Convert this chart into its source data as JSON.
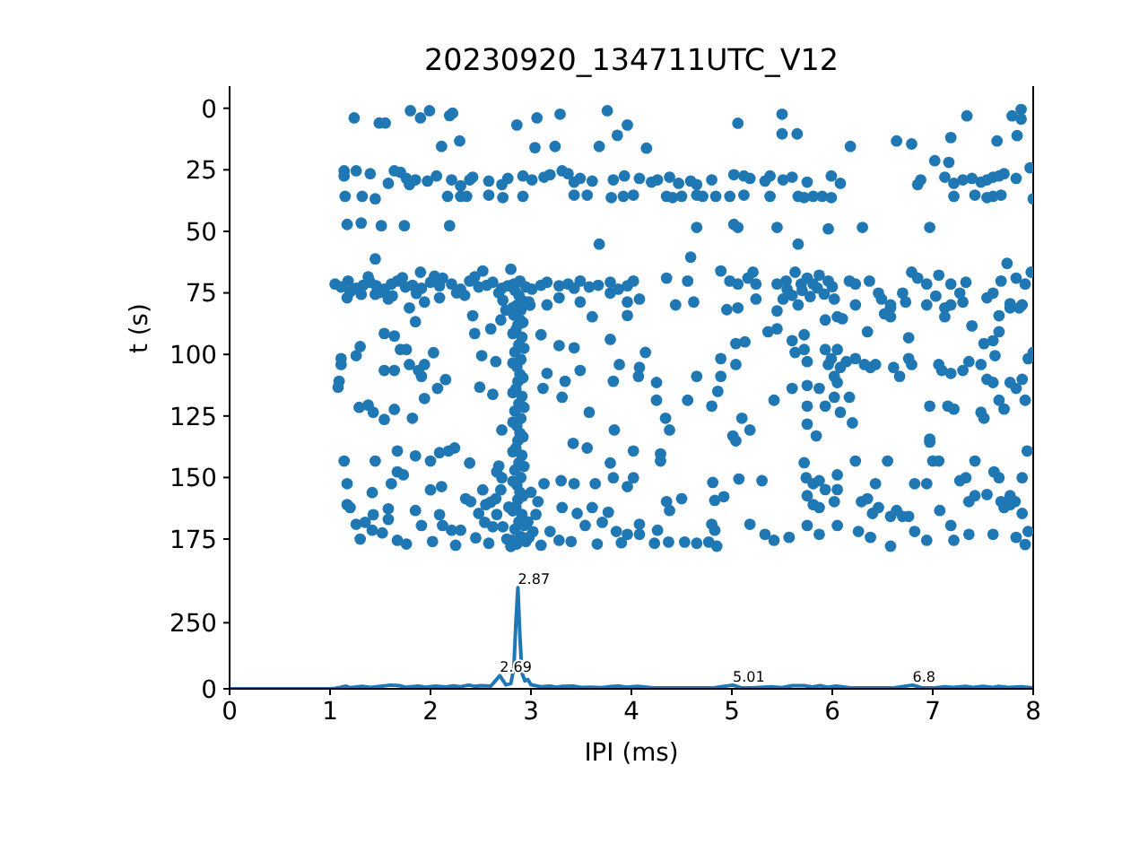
{
  "chart_data": [
    {
      "type": "scatter",
      "title": "20230920_134711UTC_V12",
      "ylabel": "t (s)",
      "x": [
        1.24,
        1.49,
        1.55,
        1.8,
        1.9,
        1.99,
        2.19,
        2.22,
        2.11,
        2.29,
        2.86,
        3.06,
        3.29,
        3.04,
        3.24,
        3.76,
        3.68,
        3.86,
        3.96,
        1.14,
        1.14,
        1.26,
        1.4,
        1.58,
        1.64,
        1.7,
        1.76,
        1.79,
        1.85,
        1.97,
        2.06,
        2.21,
        2.3,
        2.39,
        2.42,
        2.58,
        2.71,
        2.77,
        2.92,
        3.01,
        3.13,
        3.19,
        3.31,
        3.37,
        3.43,
        3.49,
        3.61,
        3.82,
        3.93,
        1.15,
        1.32,
        1.45,
        2.17,
        2.3,
        2.36,
        2.58,
        2.72,
        2.92,
        3.43,
        3.56,
        3.8,
        3.92,
        1.17,
        1.31,
        1.51,
        1.74,
        2.19,
        3.68,
        1.45,
        1.05,
        1.11,
        1.18,
        1.26,
        1.33,
        1.4,
        1.46,
        1.54,
        1.61,
        1.67,
        1.75,
        1.82,
        1.91,
        2.0,
        2.09,
        2.21,
        2.3,
        2.39,
        2.48,
        2.56,
        2.62,
        2.71,
        2.77,
        2.83,
        2.89,
        2.95,
        3.01,
        3.1,
        3.16,
        3.28,
        3.37,
        3.43,
        3.49,
        3.58,
        3.67,
        3.79,
        3.87,
        3.96,
        1.2,
        1.38,
        1.5,
        1.72,
        1.86,
        2.04,
        2.26,
        2.44,
        2.34,
        1.62,
        1.9,
        2.52,
        2.8,
        2.12,
        1.17,
        1.31,
        1.45,
        1.58,
        1.79,
        1.94,
        2.09,
        2.42,
        2.98,
        3.16,
        3.28,
        3.49,
        3.61,
        3.79,
        3.96,
        2.84,
        2.88,
        2.91,
        2.86,
        2.9,
        2.83,
        2.89,
        2.87,
        2.85,
        2.91,
        2.88,
        2.84,
        2.9,
        2.86,
        2.89,
        2.87,
        2.85,
        2.91,
        2.88,
        2.84,
        2.9,
        2.86,
        2.89,
        2.87,
        2.85,
        2.91,
        2.88,
        2.84,
        2.9,
        2.86,
        2.89,
        2.87,
        2.85,
        2.91,
        2.88,
        2.84,
        2.9,
        2.86,
        2.82,
        2.92,
        2.82,
        2.93,
        2.82,
        2.92,
        2.82,
        2.93,
        2.82,
        2.92,
        2.82,
        2.93,
        2.82,
        2.92,
        2.82,
        2.93,
        2.82,
        2.68,
        2.72,
        2.75,
        2.7,
        2.99,
        2.6,
        2.66,
        2.72,
        2.76,
        2.97,
        3.02,
        2.7,
        2.78,
        2.95,
        2.8,
        1.11,
        1.11,
        1.08,
        1.09,
        1.3,
        1.26,
        1.29,
        1.38,
        1.43,
        1.54,
        1.64,
        1.54,
        1.64,
        1.7,
        1.76,
        1.79,
        1.85,
        1.91,
        1.94,
        1.88,
        1.82,
        1.64,
        1.54,
        1.94,
        2.15,
        2.07,
        2.03,
        2.44,
        2.51,
        2.49,
        2.6,
        2.65,
        2.62,
        2.71,
        3.1,
        3.12,
        3.16,
        3.28,
        3.34,
        3.31,
        3.43,
        3.49,
        3.58,
        3.79,
        3.82,
        3.83,
        3.88,
        1.14,
        1.45,
        1.67,
        1.85,
        2.0,
        2.09,
        2.18,
        2.24,
        2.39,
        2.68,
        2.71,
        3.42,
        3.56,
        3.79,
        1.17,
        1.17,
        1.2,
        1.26,
        1.35,
        1.42,
        1.43,
        1.42,
        1.58,
        1.61,
        1.58,
        1.67,
        1.73,
        1.67,
        1.85,
        1.91,
        2.0,
        2.11,
        2.09,
        2.12,
        2.21,
        2.3,
        2.35,
        2.4,
        2.48,
        2.54,
        2.58,
        2.65,
        2.66,
        2.98,
        3.07,
        3.13,
        3.19,
        3.28,
        3.3,
        3.31,
        3.43,
        3.46,
        3.54,
        3.61,
        3.64,
        3.71,
        3.77,
        3.82,
        3.85,
        3.96,
        3.96,
        1.3,
        1.52,
        1.76,
        2.02,
        2.25,
        2.45,
        3.1,
        3.4,
        3.66,
        3.9,
        2.52,
        2.62,
        3.05,
        3.0,
        2.55,
        4.15,
        5.06,
        5.5,
        5.5,
        5.65,
        6.18,
        6.64,
        6.79,
        7.18,
        7.02,
        7.16,
        7.34,
        7.64,
        7.79,
        7.88,
        7.88,
        7.84,
        7.97,
        4.08,
        4.2,
        4.26,
        4.38,
        4.47,
        4.59,
        4.65,
        4.8,
        5.02,
        5.12,
        5.18,
        5.33,
        5.38,
        5.51,
        5.6,
        5.75,
        5.99,
        6.08,
        6.85,
        6.88,
        7.12,
        7.21,
        7.3,
        7.39,
        7.48,
        7.54,
        7.6,
        7.66,
        7.71,
        7.83,
        4.02,
        4.35,
        4.41,
        4.5,
        4.65,
        4.71,
        4.84,
        4.98,
        5.12,
        5.38,
        5.66,
        5.72,
        5.81,
        5.9,
        5.99,
        7.21,
        7.42,
        7.54,
        7.6,
        7.68,
        8.0,
        4.65,
        5.02,
        5.06,
        5.45,
        5.96,
        6.3,
        6.97,
        5.66,
        4.02,
        4.35,
        4.56,
        4.59,
        4.89,
        4.98,
        5.16,
        5.21,
        5.24,
        5.06,
        5.45,
        5.54,
        5.63,
        5.69,
        5.75,
        5.81,
        5.87,
        5.96,
        6.17,
        6.23,
        6.37,
        6.46,
        6.7,
        6.79,
        6.85,
        6.94,
        7.06,
        7.18,
        7.27,
        7.33,
        7.6,
        7.68,
        7.74,
        7.83,
        7.92,
        7.98,
        4.08,
        4.44,
        4.62,
        4.95,
        5.06,
        5.24,
        5.45,
        5.51,
        5.66,
        6.02,
        6.05,
        6.23,
        6.49,
        6.58,
        6.73,
        6.94,
        7.03,
        7.12,
        7.3,
        7.54,
        7.77,
        7.89,
        7.66,
        5.55,
        5.7,
        5.85,
        5.92,
        5.6,
        6.0,
        5.78,
        5.93,
        6.1,
        3.96,
        4.14,
        4.08,
        4.07,
        4.25,
        4.25,
        4.34,
        4.38,
        4.02,
        4.29,
        4.29,
        4.02,
        4.08,
        4.26,
        4.23,
        4.35,
        4.38,
        4.5,
        4.37,
        4.53,
        4.65,
        4.56,
        4.65,
        4.8,
        4.86,
        4.89,
        5.04,
        5.13,
        5.04,
        4.89,
        5.1,
        5.18,
        5.01,
        5.04,
        4.81,
        4.83,
        4.92,
        5.07,
        4.8,
        4.83,
        4.85,
        5.18,
        5.3,
        5.36,
        5.45,
        5.6,
        5.72,
        5.72,
        5.63,
        5.75,
        5.93,
        6.05,
        5.99,
        6.02,
        5.96,
        6.08,
        6.14,
        6.23,
        6.32,
        6.38,
        6.43,
        5.42,
        5.6,
        5.75,
        5.87,
        6.05,
        6.02,
        6.17,
        5.75,
        5.93,
        6.08,
        6.2,
        5.75,
        5.84,
        5.72,
        5.74,
        5.81,
        5.75,
        5.87,
        5.93,
        6.05,
        6.05,
        6.02,
        5.81,
        5.87,
        6.23,
        6.29,
        6.35,
        6.4,
        6.43,
        6.55,
        6.46,
        6.58,
        6.64,
        6.7,
        6.76,
        6.82,
        6.94,
        6.97,
        7.0,
        7.06,
        7.07,
        7.18,
        7.27,
        7.33,
        7.42,
        7.36,
        7.42,
        7.54,
        7.61,
        7.66,
        7.68,
        7.71,
        7.77,
        7.82,
        7.89,
        7.94,
        7.95,
        7.83,
        7.77,
        7.89,
        7.06,
        7.09,
        7.18,
        7.3,
        7.36,
        7.48,
        7.54,
        7.6,
        7.77,
        7.83,
        7.89,
        7.92,
        7.95,
        8.0,
        7.66,
        7.71,
        7.48,
        7.51,
        7.15,
        7.21,
        6.97,
        6.97,
        6.76,
        6.79,
        6.61,
        6.67,
        6.35,
        6.52,
        6.58,
        6.76,
        6.58,
        7.12,
        7.18,
        7.39,
        7.6,
        7.66,
        7.77,
        7.86,
        7.62,
        7.51,
        4.08,
        4.77,
        5.33,
        5.42,
        5.57,
        5.75,
        5.87,
        6.05,
        6.26,
        6.38,
        6.58,
        6.82,
        6.94,
        7.21,
        7.36,
        7.6,
        7.92
      ],
      "values": [
        3.9,
        6.0,
        6.0,
        1.0,
        3.9,
        1.0,
        3.0,
        2.0,
        15.5,
        13.3,
        6.8,
        3.9,
        2.4,
        16.0,
        15.5,
        1.0,
        15.5,
        11.0,
        6.8,
        25.4,
        27.5,
        25.4,
        26.6,
        30.5,
        25.4,
        26.0,
        28.5,
        31.0,
        29.1,
        29.6,
        27.5,
        29.1,
        31.5,
        29.1,
        28.0,
        29.6,
        31.0,
        28.5,
        27.5,
        29.1,
        28.0,
        27.0,
        25.4,
        26.6,
        30.0,
        28.5,
        29.6,
        29.1,
        27.5,
        35.8,
        35.8,
        36.8,
        35.8,
        35.8,
        35.8,
        35.3,
        36.3,
        35.8,
        35.3,
        35.3,
        36.3,
        35.8,
        47.2,
        46.6,
        47.7,
        47.7,
        47.7,
        55.2,
        61.2,
        71.4,
        72.6,
        70.2,
        73.1,
        71.9,
        70.7,
        72.1,
        73.5,
        71.4,
        70.2,
        72.6,
        71.9,
        73.1,
        70.7,
        72.1,
        71.4,
        73.5,
        70.2,
        72.6,
        71.9,
        70.7,
        73.1,
        72.1,
        71.4,
        70.2,
        72.6,
        73.5,
        71.9,
        70.7,
        72.1,
        71.4,
        73.1,
        70.2,
        72.6,
        71.9,
        70.7,
        73.5,
        72.1,
        74.5,
        68.5,
        74.8,
        68.8,
        75.2,
        68.2,
        75.0,
        68.5,
        76.0,
        76.2,
        66.6,
        66.1,
        65.4,
        69.0,
        77.0,
        75.6,
        75.6,
        77.5,
        81.1,
        78.7,
        77.0,
        84.3,
        78.7,
        79.9,
        77.0,
        78.7,
        84.7,
        75.1,
        78.7,
        74,
        76,
        78,
        80,
        82,
        84,
        86,
        88,
        90,
        93,
        96,
        99,
        102,
        105,
        108,
        111,
        114,
        117,
        120,
        123,
        126,
        129,
        132,
        135,
        138,
        141,
        144,
        147,
        150,
        153,
        156,
        159,
        162,
        165,
        168,
        171,
        174,
        177,
        81,
        87,
        91.5,
        97.5,
        103.5,
        109.5,
        115.5,
        121.5,
        127.5,
        133.5,
        139.5,
        145.5,
        151.5,
        157.5,
        163.5,
        169.5,
        175.5,
        75,
        78,
        82,
        86,
        80,
        160,
        165,
        170,
        175,
        168,
        172,
        155,
        162,
        176,
        178,
        101.7,
        104.1,
        113.3,
        110.9,
        96.8,
        100.5,
        121.5,
        120.6,
        123.5,
        106.5,
        106.5,
        91.5,
        92.5,
        98.0,
        98.0,
        104.1,
        86.7,
        108.9,
        104.1,
        106.5,
        125.9,
        122.3,
        126.4,
        117.9,
        110.2,
        113.8,
        99.3,
        91.5,
        100.5,
        113.3,
        89.6,
        102.9,
        116.2,
        130.7,
        92.0,
        113.8,
        107.7,
        96.4,
        110.9,
        117.4,
        97.3,
        106.5,
        123.5,
        93.9,
        110.9,
        130.7,
        104.1,
        143.3,
        143.3,
        139.2,
        141.2,
        143.3,
        139.9,
        139.2,
        138.0,
        144.1,
        145.3,
        150.1,
        136.1,
        138.0,
        144.1,
        152.5,
        161.0,
        162.2,
        169.0,
        168.2,
        156.1,
        165.1,
        171.4,
        162.7,
        152.5,
        167.0,
        147.7,
        148.9,
        175.5,
        163.4,
        169.5,
        155.0,
        153.7,
        165.1,
        169.5,
        171.4,
        171.4,
        158.6,
        159.8,
        164.6,
        168.2,
        176.7,
        158.6,
        147.7,
        174.3,
        159.8,
        152.5,
        171.9,
        175.5,
        151.3,
        162.2,
        152.5,
        164.6,
        169.5,
        162.2,
        152.5,
        168.2,
        164.1,
        150.1,
        171.9,
        153.7,
        173.1,
        175.0,
        172.5,
        177.0,
        176.0,
        177.5,
        174.5,
        177.5,
        176.0,
        177.0,
        176.5,
        155.0,
        170.0,
        165.0,
        156.0,
        161.0,
        16.2,
        6.1,
        2.4,
        10.4,
        10.4,
        15.5,
        13.3,
        14.5,
        11.9,
        21.3,
        22.0,
        3.1,
        13.3,
        3.1,
        0.5,
        4.4,
        11.1,
        24.2,
        28.5,
        30.0,
        29.1,
        28.0,
        30.5,
        29.6,
        31.0,
        29.1,
        27.0,
        27.5,
        28.5,
        29.6,
        27.5,
        29.1,
        28.0,
        30.0,
        27.5,
        30.5,
        31.0,
        29.1,
        28.0,
        30.5,
        29.1,
        28.5,
        30.0,
        29.1,
        28.0,
        27.5,
        26.6,
        28.5,
        35.3,
        35.8,
        36.3,
        35.8,
        35.3,
        35.8,
        35.8,
        35.8,
        35.3,
        35.8,
        35.8,
        36.3,
        35.8,
        35.8,
        36.3,
        35.8,
        35.3,
        36.3,
        35.8,
        35.3,
        36.8,
        48.4,
        47.2,
        48.4,
        48.4,
        49.0,
        48.4,
        48.4,
        55.2,
        70.2,
        69.0,
        70.2,
        60.5,
        66.1,
        70.2,
        69.0,
        66.6,
        71.4,
        71.4,
        71.4,
        70.2,
        66.6,
        71.4,
        69.0,
        71.4,
        67.8,
        70.2,
        70.2,
        71.4,
        70.2,
        75.1,
        75.1,
        66.6,
        69.0,
        71.4,
        67.8,
        71.4,
        75.1,
        70.7,
        75.1,
        70.2,
        63.0,
        69.0,
        71.4,
        66.6,
        77.5,
        79.9,
        78.7,
        81.8,
        81.1,
        77.5,
        82.3,
        77.5,
        79.9,
        77.5,
        84.7,
        79.9,
        77.5,
        81.1,
        78.7,
        79.9,
        76.3,
        81.1,
        78.7,
        77.0,
        79.4,
        79.9,
        84.3,
        73.5,
        74.0,
        73.0,
        75.5,
        76.0,
        72.5,
        76.5,
        86.0,
        85.5,
        84.2,
        99.2,
        105.3,
        108.9,
        111.4,
        118.6,
        125.9,
        130.7,
        139.2,
        140.4,
        143.3,
        150.1,
        169.0,
        171.4,
        176.7,
        159.8,
        163.4,
        158.6,
        176.2,
        176.2,
        176.7,
        118.6,
        108.9,
        121.0,
        115.0,
        101.7,
        95.6,
        94.9,
        104.1,
        108.9,
        125.9,
        130.7,
        133.1,
        135.1,
        152.0,
        159.3,
        157.8,
        150.6,
        169.0,
        171.4,
        177.9,
        169.0,
        151.3,
        90.8,
        89.6,
        94.4,
        92.0,
        98.0,
        99.2,
        102.9,
        98.0,
        98.0,
        101.7,
        108.9,
        104.1,
        105.3,
        102.9,
        101.7,
        104.1,
        105.3,
        104.1,
        118.6,
        113.8,
        112.6,
        113.8,
        111.4,
        117.4,
        117.4,
        121.0,
        121.0,
        123.5,
        127.8,
        128.3,
        133.1,
        144.0,
        150.1,
        152.5,
        157.4,
        151.3,
        154.9,
        148.9,
        154.9,
        159.8,
        161.0,
        162.2,
        143.3,
        159.8,
        158.6,
        164.6,
        152.5,
        143.3,
        162.2,
        165.8,
        163.4,
        165.8,
        165.8,
        152.5,
        152.5,
        135.6,
        143.3,
        143.3,
        163.4,
        169.5,
        151.3,
        150.1,
        143.3,
        159.8,
        157.4,
        156.9,
        147.7,
        150.1,
        159.8,
        162.2,
        157.4,
        159.8,
        150.1,
        139.2,
        171.9,
        174.3,
        161.0,
        164.6,
        104.1,
        106.5,
        107.7,
        106.5,
        102.9,
        104.1,
        110.1,
        111.4,
        111.4,
        113.8,
        110.1,
        118.6,
        101.7,
        99.2,
        118.6,
        122.2,
        123.5,
        125.9,
        121.0,
        122.2,
        121.0,
        134.4,
        101.7,
        104.1,
        105.3,
        108.9,
        90.8,
        83.5,
        84.7,
        93.2,
        79.9,
        84.7,
        79.9,
        88.4,
        94.4,
        90.8,
        81.1,
        81.1,
        100.5,
        95.6,
        173.1,
        176.2,
        173.1,
        175.5,
        174.3,
        169.5,
        173.1,
        169.5,
        171.9,
        174.3,
        177.9,
        171.9,
        175.5,
        175.5,
        173.1,
        173.1,
        177.2
      ],
      "color": "#1f77b4",
      "marker": "circle",
      "xlim": [
        0,
        8
      ],
      "ylim": [
        187,
        -9
      ],
      "yticks": [
        0,
        25,
        50,
        75,
        100,
        125,
        150,
        175
      ],
      "tick_labels": "y"
    },
    {
      "type": "line",
      "xlabel": "IPI (ms)",
      "x": [
        0,
        0.5,
        1.0,
        1.05,
        1.1,
        1.16,
        1.2,
        1.32,
        1.4,
        1.52,
        1.6,
        1.69,
        1.75,
        1.88,
        1.95,
        2.05,
        2.15,
        2.23,
        2.3,
        2.38,
        2.45,
        2.5,
        2.6,
        2.69,
        2.75,
        2.8,
        2.83,
        2.85,
        2.87,
        2.89,
        2.91,
        2.94,
        2.97,
        3.0,
        3.1,
        3.19,
        3.25,
        3.32,
        3.42,
        3.5,
        3.6,
        3.7,
        3.82,
        3.88,
        3.95,
        4.06,
        4.2,
        4.4,
        4.6,
        4.8,
        5.01,
        5.1,
        5.2,
        5.39,
        5.5,
        5.6,
        5.72,
        5.8,
        5.88,
        5.95,
        6.04,
        6.2,
        6.4,
        6.6,
        6.8,
        6.9,
        7.0,
        7.12,
        7.2,
        7.33,
        7.4,
        7.5,
        7.6,
        7.65,
        7.75,
        7.88,
        8.0
      ],
      "values": [
        0,
        0,
        0,
        2,
        5,
        10,
        4,
        9,
        5,
        10,
        14,
        12,
        6,
        10,
        6,
        10,
        7,
        11,
        8,
        14,
        9,
        12,
        10,
        50,
        15,
        20,
        80,
        250,
        383,
        200,
        60,
        30,
        35,
        15,
        8,
        10,
        6,
        9,
        10,
        5,
        6,
        4,
        9,
        10,
        6,
        9,
        4,
        3,
        3,
        3,
        14,
        3,
        3,
        8,
        4,
        12,
        12,
        7,
        12,
        6,
        10,
        3,
        3,
        3,
        14,
        3,
        3,
        8,
        5,
        9,
        5,
        9,
        5,
        9,
        5,
        8,
        3
      ],
      "color": "#1f77b4",
      "xlim": [
        0,
        8
      ],
      "xticks": [
        0,
        1,
        2,
        3,
        4,
        5,
        6,
        7,
        8
      ],
      "ylim": [
        0,
        455
      ],
      "yticks": [
        0,
        250
      ],
      "annotations": [
        {
          "text": "2.69",
          "x": 2.69,
          "y": 50
        },
        {
          "text": "2.87",
          "x": 2.87,
          "y": 383
        },
        {
          "text": "5.01",
          "x": 5.01,
          "y": 14
        },
        {
          "text": "6.8",
          "x": 6.8,
          "y": 14
        }
      ]
    }
  ]
}
